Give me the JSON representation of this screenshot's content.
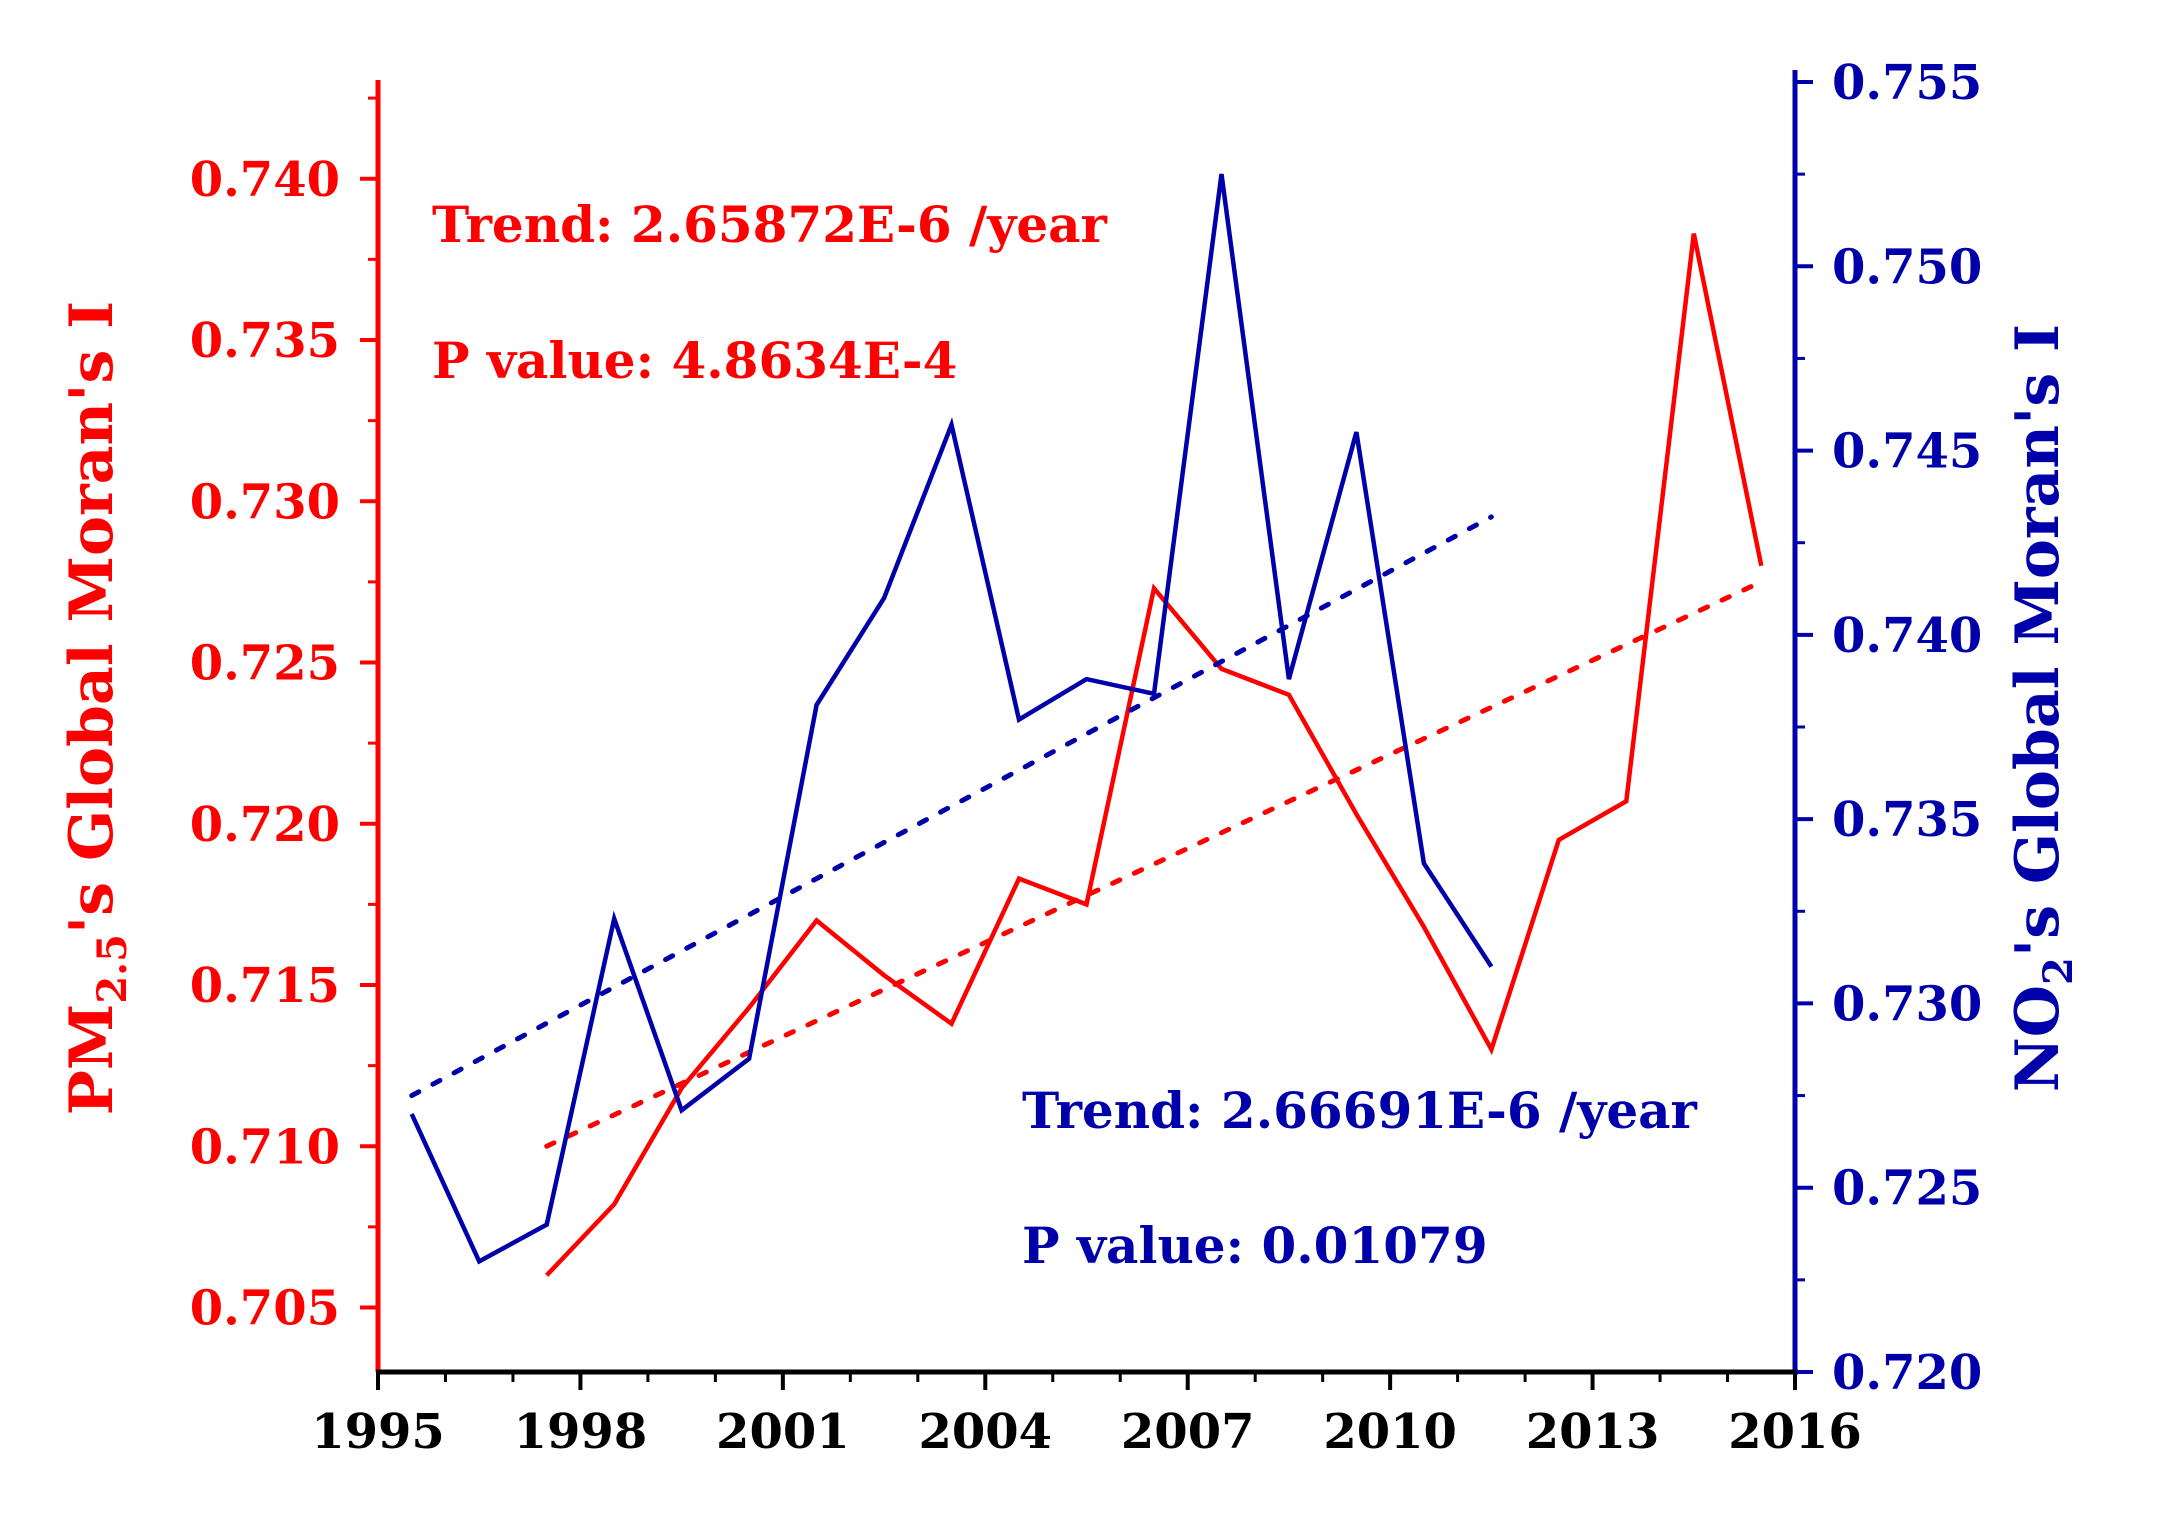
{
  "chart_data": {
    "type": "line",
    "x_ticks": [
      "1995",
      "1998",
      "2001",
      "2004",
      "2007",
      "2010",
      "2013",
      "2016"
    ],
    "xlim": [
      1995,
      2016
    ],
    "left_axis": {
      "label_main": "PM",
      "label_sub": "2.5",
      "label_rest": "'s Global Moran's I",
      "ylim": [
        0.703,
        0.743
      ],
      "ticks": [
        "0.705",
        "0.710",
        "0.715",
        "0.720",
        "0.725",
        "0.730",
        "0.735",
        "0.740"
      ],
      "color": "#ff0000"
    },
    "right_axis": {
      "label_main": "NO",
      "label_sub": "2",
      "label_rest": "'s Global Moran's I",
      "ylim": [
        0.72,
        0.755
      ],
      "ticks": [
        "0.720",
        "0.725",
        "0.730",
        "0.735",
        "0.740",
        "0.745",
        "0.750",
        "0.755"
      ],
      "color": "#0000aa"
    },
    "series": [
      {
        "name": "PM2.5",
        "axis": "left",
        "color": "#ff0000",
        "x": [
          1997.5,
          1998.5,
          1999.5,
          2000.5,
          2001.5,
          2002.5,
          2003.5,
          2004.5,
          2005.5,
          2006.5,
          2007.5,
          2008.5,
          2009.5,
          2010.5,
          2011.5,
          2012.5,
          2013.5,
          2014.5,
          2015.5
        ],
        "values": [
          0.706,
          0.7082,
          0.7118,
          0.7143,
          0.717,
          0.7153,
          0.7138,
          0.7183,
          0.7175,
          0.7273,
          0.7248,
          0.724,
          0.7203,
          0.7168,
          0.713,
          0.7195,
          0.7207,
          0.7383,
          0.728
        ],
        "trend": {
          "x": [
            1997.5,
            2015.5
          ],
          "values": [
            0.71,
            0.7275
          ]
        },
        "annotation": {
          "trend": "Trend: 2.65872E-6 /year",
          "p_value": "P value: 4.8634E-4"
        }
      },
      {
        "name": "NO2",
        "axis": "right",
        "color": "#0000aa",
        "x": [
          1995.5,
          1996.5,
          1997.5,
          1998.5,
          1999.5,
          2000.5,
          2001.5,
          2002.5,
          2003.5,
          2004.5,
          2005.5,
          2006.5,
          2007.5,
          2008.5,
          2009.5,
          2010.5,
          2011.5
        ],
        "values": [
          0.727,
          0.723,
          0.724,
          0.7323,
          0.7271,
          0.7285,
          0.7381,
          0.741,
          0.7457,
          0.7377,
          0.7388,
          0.7384,
          0.7525,
          0.7388,
          0.7455,
          0.7338,
          0.731
        ],
        "trend": {
          "x": [
            1995.5,
            2011.5
          ],
          "values": [
            0.7275,
            0.7432
          ]
        },
        "annotation": {
          "trend": "Trend: 2.66691E-6 /year",
          "p_value": "P value: 0.01079"
        }
      }
    ]
  }
}
